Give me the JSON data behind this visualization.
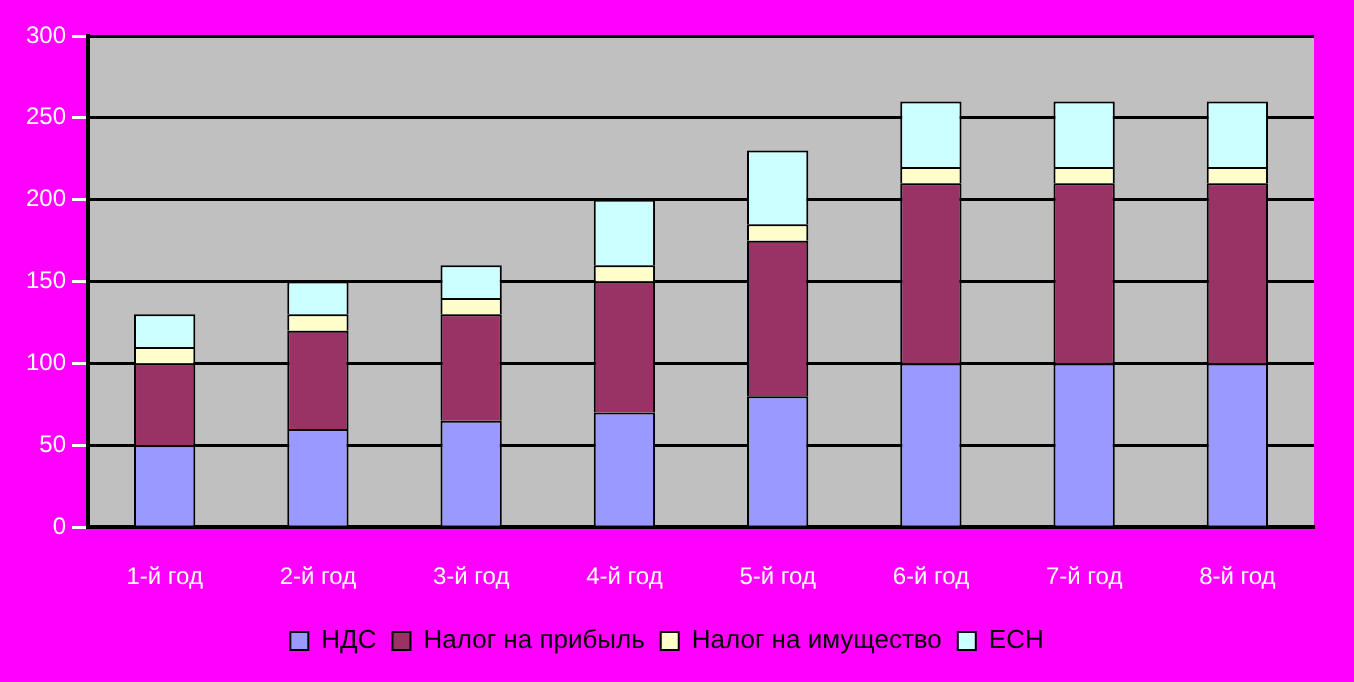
{
  "chart_data": {
    "type": "bar",
    "stacked": true,
    "categories": [
      "1-й год",
      "2-й год",
      "3-й год",
      "4-й год",
      "5-й год",
      "6-й год",
      "7-й год",
      "8-й год"
    ],
    "series": [
      {
        "name": "НДС",
        "color": "#9999ff",
        "values": [
          50,
          60,
          65,
          70,
          80,
          100,
          100,
          100
        ]
      },
      {
        "name": "Налог на прибыль",
        "color": "#993366",
        "values": [
          50,
          60,
          65,
          80,
          95,
          110,
          110,
          110
        ]
      },
      {
        "name": "Налог на имущество",
        "color": "#ffffcc",
        "values": [
          10,
          10,
          10,
          10,
          10,
          10,
          10,
          10
        ]
      },
      {
        "name": "ЕСН",
        "color": "#ccffff",
        "values": [
          20,
          20,
          20,
          40,
          45,
          40,
          40,
          40
        ]
      }
    ],
    "ylim": [
      0,
      300
    ],
    "yticks": [
      0,
      50,
      100,
      150,
      200,
      250,
      300
    ],
    "grid": "y",
    "legend": "bottom"
  }
}
